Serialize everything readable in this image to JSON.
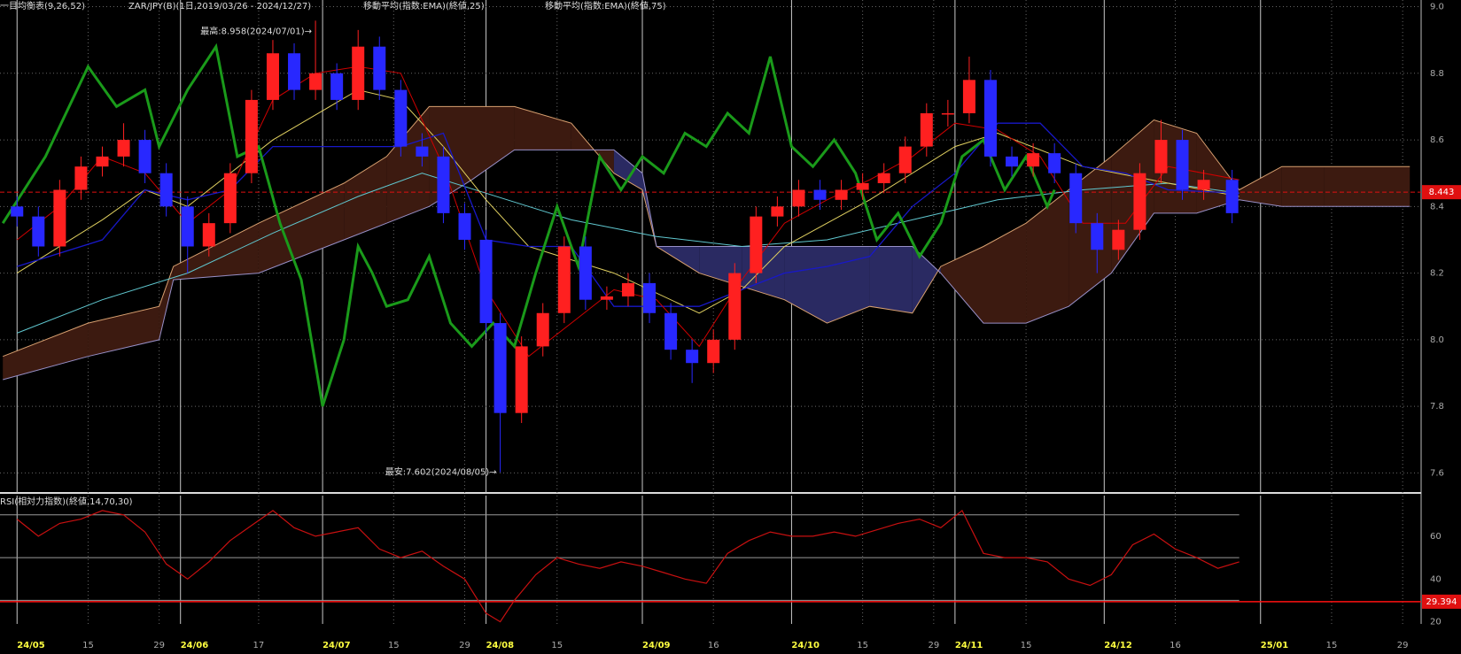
{
  "chart_data": [
    {
      "type": "ichimoku",
      "title_parts": [
        "一目均衡表(9,26,52)",
        "ZAR/JPY(B)(1日,2019/03/26 - 2024/12/27)",
        "移動平均(指数:EMA)(終値,25)",
        "移動平均(指数:EMA)(終値,75)"
      ],
      "annotations": [
        "最高:8.958(2024/07/01)→",
        "最安:7.602(2024/08/05)→"
      ],
      "xlim": [
        -2.4,
        197.6
      ],
      "xticks": [
        {
          "value": 0,
          "label": "24/05"
        },
        {
          "value": 10,
          "label": "15"
        },
        {
          "value": 20,
          "label": "29"
        },
        {
          "value": 23,
          "label": "24/06"
        },
        {
          "value": 34,
          "label": "17"
        },
        {
          "value": 43,
          "label": "24/07"
        },
        {
          "value": 53,
          "label": "15"
        },
        {
          "value": 63,
          "label": "29"
        },
        {
          "value": 66,
          "label": "24/08"
        },
        {
          "value": 76,
          "label": "15"
        },
        {
          "value": 88,
          "label": "24/09"
        },
        {
          "value": 98,
          "label": "16"
        },
        {
          "value": 109,
          "label": "24/10"
        },
        {
          "value": 119,
          "label": "15"
        },
        {
          "value": 129,
          "label": "29"
        },
        {
          "value": 132,
          "label": "24/11"
        },
        {
          "value": 142,
          "label": "15"
        },
        {
          "value": 153,
          "label": "24/12"
        },
        {
          "value": 163,
          "label": "16"
        },
        {
          "value": 175,
          "label": "25/01"
        },
        {
          "value": 185,
          "label": "15"
        },
        {
          "value": 195,
          "label": "29"
        }
      ],
      "ylim": [
        7.54,
        9.02
      ],
      "yticks": [
        {
          "value": 9,
          "label": "9.0"
        },
        8.8,
        8.6,
        8.4,
        8.2,
        {
          "value": 8,
          "label": "8.0"
        },
        7.8,
        7.6
      ],
      "grid": true,
      "up_color": "#ff2020",
      "down_color": "#2828ff",
      "x": [
        0,
        3,
        6,
        9,
        12,
        15,
        18,
        21,
        24,
        27,
        30,
        33,
        36,
        39,
        42,
        45,
        48,
        51,
        54,
        57,
        60,
        63,
        66,
        68,
        71,
        74,
        77,
        80,
        83,
        86,
        89,
        92,
        95,
        98,
        101,
        104,
        107,
        110,
        113,
        116,
        119,
        122,
        125,
        128,
        131,
        134,
        137,
        140,
        143,
        146,
        149,
        152,
        155,
        158,
        161,
        164,
        167,
        171
      ],
      "ohlc": [
        [
          8.4,
          8.43,
          8.34,
          8.37
        ],
        [
          8.37,
          8.4,
          8.25,
          8.28
        ],
        [
          8.28,
          8.48,
          8.25,
          8.45
        ],
        [
          8.45,
          8.55,
          8.42,
          8.52
        ],
        [
          8.52,
          8.58,
          8.49,
          8.55
        ],
        [
          8.55,
          8.65,
          8.52,
          8.6
        ],
        [
          8.6,
          8.63,
          8.47,
          8.5
        ],
        [
          8.5,
          8.53,
          8.37,
          8.4
        ],
        [
          8.4,
          8.43,
          8.2,
          8.28
        ],
        [
          8.28,
          8.38,
          8.25,
          8.35
        ],
        [
          8.35,
          8.53,
          8.32,
          8.5
        ],
        [
          8.5,
          8.75,
          8.47,
          8.72
        ],
        [
          8.72,
          8.9,
          8.69,
          8.86
        ],
        [
          8.86,
          8.89,
          8.72,
          8.75
        ],
        [
          8.75,
          8.958,
          8.72,
          8.8
        ],
        [
          8.8,
          8.83,
          8.69,
          8.72
        ],
        [
          8.72,
          8.93,
          8.69,
          8.88
        ],
        [
          8.88,
          8.91,
          8.72,
          8.75
        ],
        [
          8.75,
          8.78,
          8.55,
          8.58
        ],
        [
          8.58,
          8.62,
          8.52,
          8.55
        ],
        [
          8.55,
          8.58,
          8.35,
          8.38
        ],
        [
          8.38,
          8.41,
          8.27,
          8.3
        ],
        [
          8.3,
          8.33,
          8.02,
          8.05
        ],
        [
          8.05,
          8.08,
          7.602,
          7.78
        ],
        [
          7.78,
          8.01,
          7.75,
          7.98
        ],
        [
          7.98,
          8.11,
          7.95,
          8.08
        ],
        [
          8.08,
          8.31,
          8.05,
          8.28
        ],
        [
          8.28,
          8.31,
          8.09,
          8.12
        ],
        [
          8.12,
          8.16,
          8.09,
          8.13
        ],
        [
          8.13,
          8.2,
          8.1,
          8.17
        ],
        [
          8.17,
          8.2,
          8.05,
          8.08
        ],
        [
          8.08,
          8.11,
          7.94,
          7.97
        ],
        [
          7.97,
          8.0,
          7.87,
          7.93
        ],
        [
          7.93,
          8.03,
          7.9,
          8.0
        ],
        [
          8.0,
          8.23,
          7.97,
          8.2
        ],
        [
          8.2,
          8.4,
          8.17,
          8.37
        ],
        [
          8.37,
          8.43,
          8.34,
          8.4
        ],
        [
          8.4,
          8.48,
          8.37,
          8.45
        ],
        [
          8.45,
          8.48,
          8.39,
          8.42
        ],
        [
          8.42,
          8.48,
          8.39,
          8.45
        ],
        [
          8.45,
          8.5,
          8.42,
          8.47
        ],
        [
          8.47,
          8.53,
          8.44,
          8.5
        ],
        [
          8.5,
          8.61,
          8.47,
          8.58
        ],
        [
          8.58,
          8.71,
          8.55,
          8.68
        ],
        [
          8.68,
          8.72,
          8.64,
          8.68
        ],
        [
          8.68,
          8.85,
          8.65,
          8.78
        ],
        [
          8.78,
          8.81,
          8.52,
          8.55
        ],
        [
          8.55,
          8.58,
          8.49,
          8.52
        ],
        [
          8.52,
          8.59,
          8.49,
          8.56
        ],
        [
          8.56,
          8.59,
          8.47,
          8.5
        ],
        [
          8.5,
          8.53,
          8.32,
          8.35
        ],
        [
          8.35,
          8.38,
          8.2,
          8.27
        ],
        [
          8.27,
          8.36,
          8.24,
          8.33
        ],
        [
          8.33,
          8.53,
          8.3,
          8.5
        ],
        [
          8.5,
          8.66,
          8.47,
          8.6
        ],
        [
          8.6,
          8.63,
          8.42,
          8.45
        ],
        [
          8.45,
          8.51,
          8.42,
          8.48
        ],
        [
          8.48,
          8.51,
          8.35,
          8.38
        ]
      ],
      "cloud": {
        "x": [
          -2,
          10,
          20,
          22,
          34,
          46,
          52,
          58,
          64,
          70,
          78,
          84,
          88,
          90,
          96,
          102,
          108,
          114,
          120,
          126,
          130,
          136,
          142,
          148,
          154,
          160,
          166,
          172,
          178,
          184,
          196
        ],
        "span_a": [
          7.95,
          8.05,
          8.1,
          8.22,
          8.35,
          8.47,
          8.55,
          8.7,
          8.7,
          8.7,
          8.65,
          8.5,
          8.45,
          8.28,
          8.2,
          8.16,
          8.12,
          8.05,
          8.1,
          8.08,
          8.22,
          8.28,
          8.35,
          8.45,
          8.55,
          8.66,
          8.62,
          8.45,
          8.52,
          8.52,
          8.52
        ],
        "span_b": [
          7.88,
          7.95,
          8.0,
          8.18,
          8.2,
          8.3,
          8.35,
          8.4,
          8.48,
          8.57,
          8.57,
          8.57,
          8.5,
          8.28,
          8.28,
          8.28,
          8.28,
          8.28,
          8.28,
          8.28,
          8.2,
          8.05,
          8.05,
          8.1,
          8.2,
          8.38,
          8.38,
          8.42,
          8.4,
          8.4,
          8.4
        ],
        "a_color": "#d8a070",
        "b_color": "#9890c8",
        "bull_fill": "#3c1a10",
        "bear_fill": "#2a2a62"
      },
      "lines": [
        {
          "color": "#60c8d0",
          "width": 1,
          "x": [
            0,
            12,
            24,
            36,
            48,
            57,
            66,
            78,
            90,
            102,
            114,
            126,
            138,
            150,
            162,
            172
          ],
          "values": [
            8.02,
            8.12,
            8.2,
            8.32,
            8.43,
            8.5,
            8.44,
            8.36,
            8.31,
            8.28,
            8.3,
            8.36,
            8.42,
            8.45,
            8.47,
            8.44
          ]
        },
        {
          "color": "#e0d060",
          "width": 1,
          "x": [
            0,
            12,
            18,
            24,
            36,
            48,
            54,
            60,
            66,
            72,
            84,
            96,
            102,
            108,
            120,
            132,
            138,
            150,
            162,
            172
          ],
          "values": [
            8.2,
            8.36,
            8.45,
            8.4,
            8.6,
            8.75,
            8.72,
            8.58,
            8.42,
            8.28,
            8.2,
            8.08,
            8.15,
            8.28,
            8.42,
            8.58,
            8.62,
            8.52,
            8.47,
            8.43
          ]
        },
        {
          "color": "#1818c8",
          "width": 1.3,
          "x": [
            0,
            12,
            18,
            24,
            30,
            36,
            42,
            54,
            60,
            66,
            72,
            78,
            84,
            90,
            96,
            102,
            108,
            114,
            120,
            126,
            132,
            138,
            144,
            150,
            156,
            162,
            172
          ],
          "values": [
            8.22,
            8.3,
            8.45,
            8.42,
            8.45,
            8.58,
            8.58,
            8.58,
            8.62,
            8.3,
            8.28,
            8.28,
            8.1,
            8.1,
            8.1,
            8.15,
            8.2,
            8.22,
            8.25,
            8.4,
            8.5,
            8.65,
            8.65,
            8.52,
            8.5,
            8.45,
            8.44
          ]
        },
        {
          "color": "#d00000",
          "width": 1,
          "x": [
            0,
            6,
            12,
            18,
            24,
            30,
            36,
            42,
            48,
            54,
            60,
            66,
            72,
            78,
            84,
            90,
            96,
            102,
            108,
            114,
            120,
            126,
            132,
            138,
            144,
            150,
            156,
            162,
            172
          ],
          "values": [
            8.3,
            8.4,
            8.55,
            8.5,
            8.35,
            8.45,
            8.72,
            8.8,
            8.82,
            8.8,
            8.52,
            8.15,
            7.95,
            8.05,
            8.15,
            8.12,
            7.98,
            8.18,
            8.35,
            8.42,
            8.48,
            8.55,
            8.65,
            8.63,
            8.55,
            8.35,
            8.35,
            8.52,
            8.48
          ]
        },
        {
          "color": "#1a9a1a",
          "width": 3,
          "x": [
            -2,
            4,
            10,
            14,
            18,
            20,
            24,
            28,
            31,
            34,
            37,
            40,
            43,
            46,
            48,
            50,
            52,
            55,
            58,
            61,
            64,
            67,
            70,
            73,
            76,
            79,
            82,
            85,
            88,
            91,
            94,
            97,
            100,
            103,
            106,
            109,
            112,
            115,
            118,
            121,
            124,
            127,
            130,
            133,
            136,
            139,
            142,
            145,
            146
          ],
          "values": [
            8.35,
            8.55,
            8.82,
            8.7,
            8.75,
            8.58,
            8.75,
            8.88,
            8.55,
            8.58,
            8.35,
            8.18,
            7.8,
            8.0,
            8.28,
            8.2,
            8.1,
            8.12,
            8.25,
            8.05,
            7.98,
            8.05,
            7.98,
            8.2,
            8.4,
            8.22,
            8.55,
            8.45,
            8.55,
            8.5,
            8.62,
            8.58,
            8.68,
            8.62,
            8.85,
            8.58,
            8.52,
            8.6,
            8.5,
            8.3,
            8.38,
            8.25,
            8.35,
            8.55,
            8.6,
            8.45,
            8.55,
            8.4,
            8.45
          ]
        }
      ],
      "last_price": 8.443,
      "last_color": "#e01010"
    },
    {
      "type": "line",
      "title": "RSI(相対力指数)(終値,14,70,30)",
      "ylim": [
        19,
        79
      ],
      "yticks": [
        60,
        40,
        20
      ],
      "levels": [
        70,
        50,
        30
      ],
      "color": "#c81010",
      "x": [
        0,
        3,
        6,
        9,
        12,
        15,
        18,
        21,
        24,
        27,
        30,
        33,
        36,
        39,
        42,
        45,
        48,
        51,
        54,
        57,
        60,
        63,
        66,
        68,
        70,
        73,
        76,
        79,
        82,
        85,
        88,
        91,
        94,
        97,
        100,
        103,
        106,
        109,
        112,
        115,
        118,
        121,
        124,
        127,
        130,
        133,
        136,
        139,
        142,
        145,
        148,
        151,
        154,
        157,
        160,
        163,
        166,
        169,
        172
      ],
      "values": [
        68,
        60,
        66,
        68,
        72,
        70,
        62,
        47,
        40,
        48,
        58,
        65,
        72,
        64,
        60,
        62,
        64,
        54,
        50,
        53,
        46,
        40,
        24,
        20,
        30,
        42,
        50,
        47,
        45,
        48,
        46,
        43,
        40,
        38,
        52,
        58,
        62,
        60,
        60,
        62,
        60,
        63,
        66,
        68,
        64,
        72,
        52,
        50,
        50,
        48,
        40,
        37,
        42,
        56,
        61,
        54,
        50,
        45,
        48
      ],
      "marker": 29.394
    }
  ]
}
